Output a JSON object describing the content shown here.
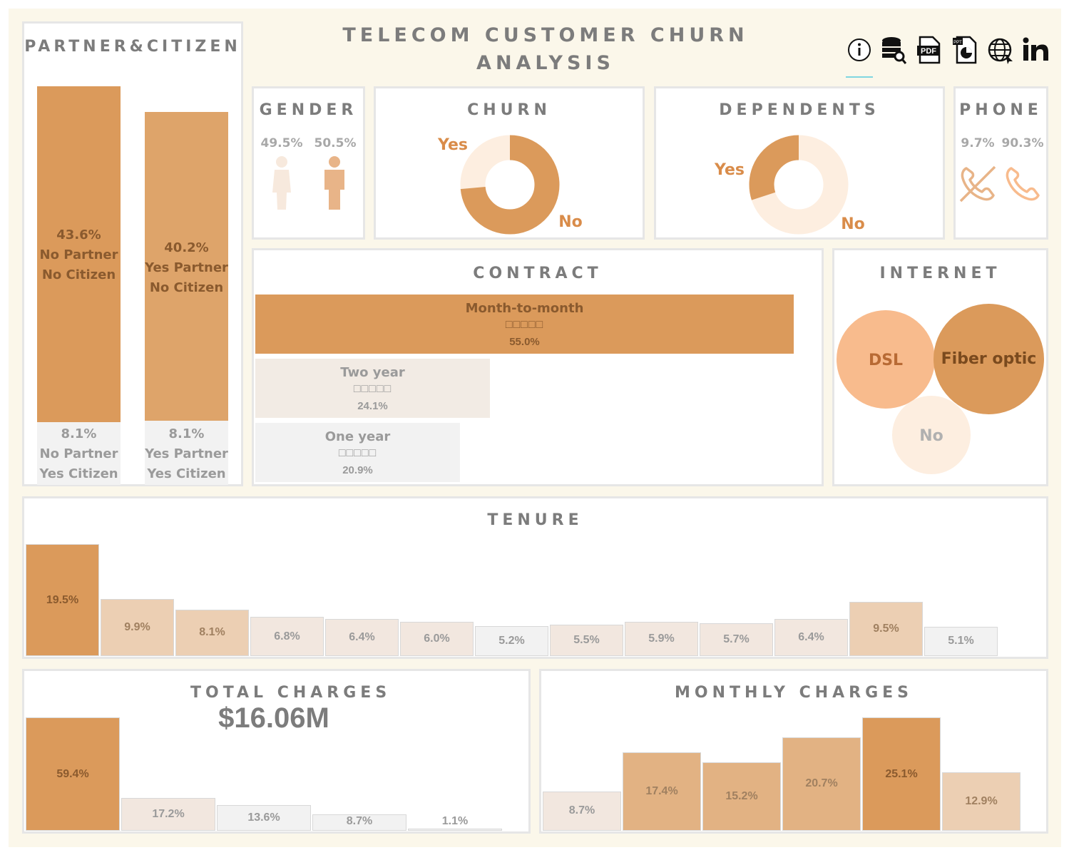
{
  "title_line1": "TELECOM CUSTOMER CHURN",
  "title_line2": "ANALYSIS",
  "toolbar_icons": [
    "info-icon",
    "database-search-icon",
    "pdf-icon",
    "ppt-icon",
    "globe-icon",
    "linkedin-icon"
  ],
  "colors": {
    "dark": "#db9a5b",
    "mid": "#dea46a",
    "light": "#eccfb3",
    "pale": "#f2e7df",
    "faint": "#f2f2f2",
    "peach": "#f8bb8d",
    "donut_light": "#fdeee0"
  },
  "partner_citizen": {
    "title": "PARTNER&CITIZEN",
    "bars": [
      {
        "top_pct": "43.6%",
        "top_l1": "No Partner",
        "top_l2": "No Citizen",
        "top_value": 43.6,
        "bottom_pct": "8.1%",
        "bottom_l1": "No Partner",
        "bottom_l2": "Yes Citizen"
      },
      {
        "top_pct": "40.2%",
        "top_l1": "Yes Partner",
        "top_l2": "No Citizen",
        "top_value": 40.2,
        "bottom_pct": "8.1%",
        "bottom_l1": "Yes Partner",
        "bottom_l2": "Yes Citizen"
      }
    ]
  },
  "gender": {
    "title": "GENDER",
    "female_pct": "49.5%",
    "male_pct": "50.5%"
  },
  "churn": {
    "title": "CHURN",
    "yes_label": "Yes",
    "no_label": "No",
    "yes_value": 26.5
  },
  "dependents": {
    "title": "DEPENDENTS",
    "yes_label": "Yes",
    "no_label": "No",
    "yes_value": 30.0
  },
  "phone": {
    "title": "PHONE",
    "no_pct": "9.7%",
    "yes_pct": "90.3%"
  },
  "contract": {
    "title": "CONTRACT",
    "items": [
      {
        "label": "Month-to-month",
        "stars": "□□□□□",
        "pct": "55.0%",
        "value": 55.0
      },
      {
        "label": "Two year",
        "stars": "□□□□□",
        "pct": "24.1%",
        "value": 24.1
      },
      {
        "label": "One year",
        "stars": "□□□□□",
        "pct": "20.9%",
        "value": 20.9
      }
    ]
  },
  "internet": {
    "title": "INTERNET",
    "dsl": "DSL",
    "fiber": "Fiber optic",
    "no": "No"
  },
  "tenure": {
    "title": "TENURE"
  },
  "total_charges": {
    "title": "TOTAL CHARGES",
    "kpi": "$16.06M"
  },
  "monthly_charges": {
    "title": "MONTHLY CHARGES"
  },
  "chart_data": [
    {
      "type": "bar",
      "name": "PARTNER&CITIZEN",
      "categories": [
        "No Partner No Citizen",
        "No Partner Yes Citizen",
        "Yes Partner No Citizen",
        "Yes Partner Yes Citizen"
      ],
      "values": [
        43.6,
        8.1,
        40.2,
        8.1
      ]
    },
    {
      "type": "pie",
      "name": "GENDER",
      "categories": [
        "female",
        "male"
      ],
      "values": [
        49.5,
        50.5
      ]
    },
    {
      "type": "pie",
      "name": "CHURN",
      "categories": [
        "Yes",
        "No"
      ],
      "values": [
        26.5,
        73.5
      ]
    },
    {
      "type": "pie",
      "name": "DEPENDENTS",
      "categories": [
        "Yes",
        "No"
      ],
      "values": [
        30.0,
        70.0
      ]
    },
    {
      "type": "pie",
      "name": "PHONE",
      "categories": [
        "No phone",
        "Phone"
      ],
      "values": [
        9.7,
        90.3
      ]
    },
    {
      "type": "bar",
      "name": "CONTRACT",
      "categories": [
        "Month-to-month",
        "Two year",
        "One year"
      ],
      "values": [
        55.0,
        24.1,
        20.9
      ]
    },
    {
      "type": "bar",
      "name": "TENURE",
      "values": [
        19.5,
        9.9,
        8.1,
        6.8,
        6.4,
        6.0,
        5.2,
        5.5,
        5.9,
        5.7,
        6.4,
        9.5,
        5.1
      ],
      "labels": [
        "19.5%",
        "9.9%",
        "8.1%",
        "6.8%",
        "6.4%",
        "6.0%",
        "5.2%",
        "5.5%",
        "5.9%",
        "5.7%",
        "6.4%",
        "9.5%",
        "5.1%"
      ]
    },
    {
      "type": "bar",
      "name": "TOTAL CHARGES",
      "values": [
        59.4,
        17.2,
        13.6,
        8.7,
        1.1
      ],
      "labels": [
        "59.4%",
        "17.2%",
        "13.6%",
        "8.7%",
        "1.1%"
      ]
    },
    {
      "type": "bar",
      "name": "MONTHLY CHARGES",
      "values": [
        8.7,
        17.4,
        15.2,
        20.7,
        25.1,
        12.9
      ],
      "labels": [
        "8.7%",
        "17.4%",
        "15.2%",
        "20.7%",
        "25.1%",
        "12.9%"
      ]
    }
  ]
}
